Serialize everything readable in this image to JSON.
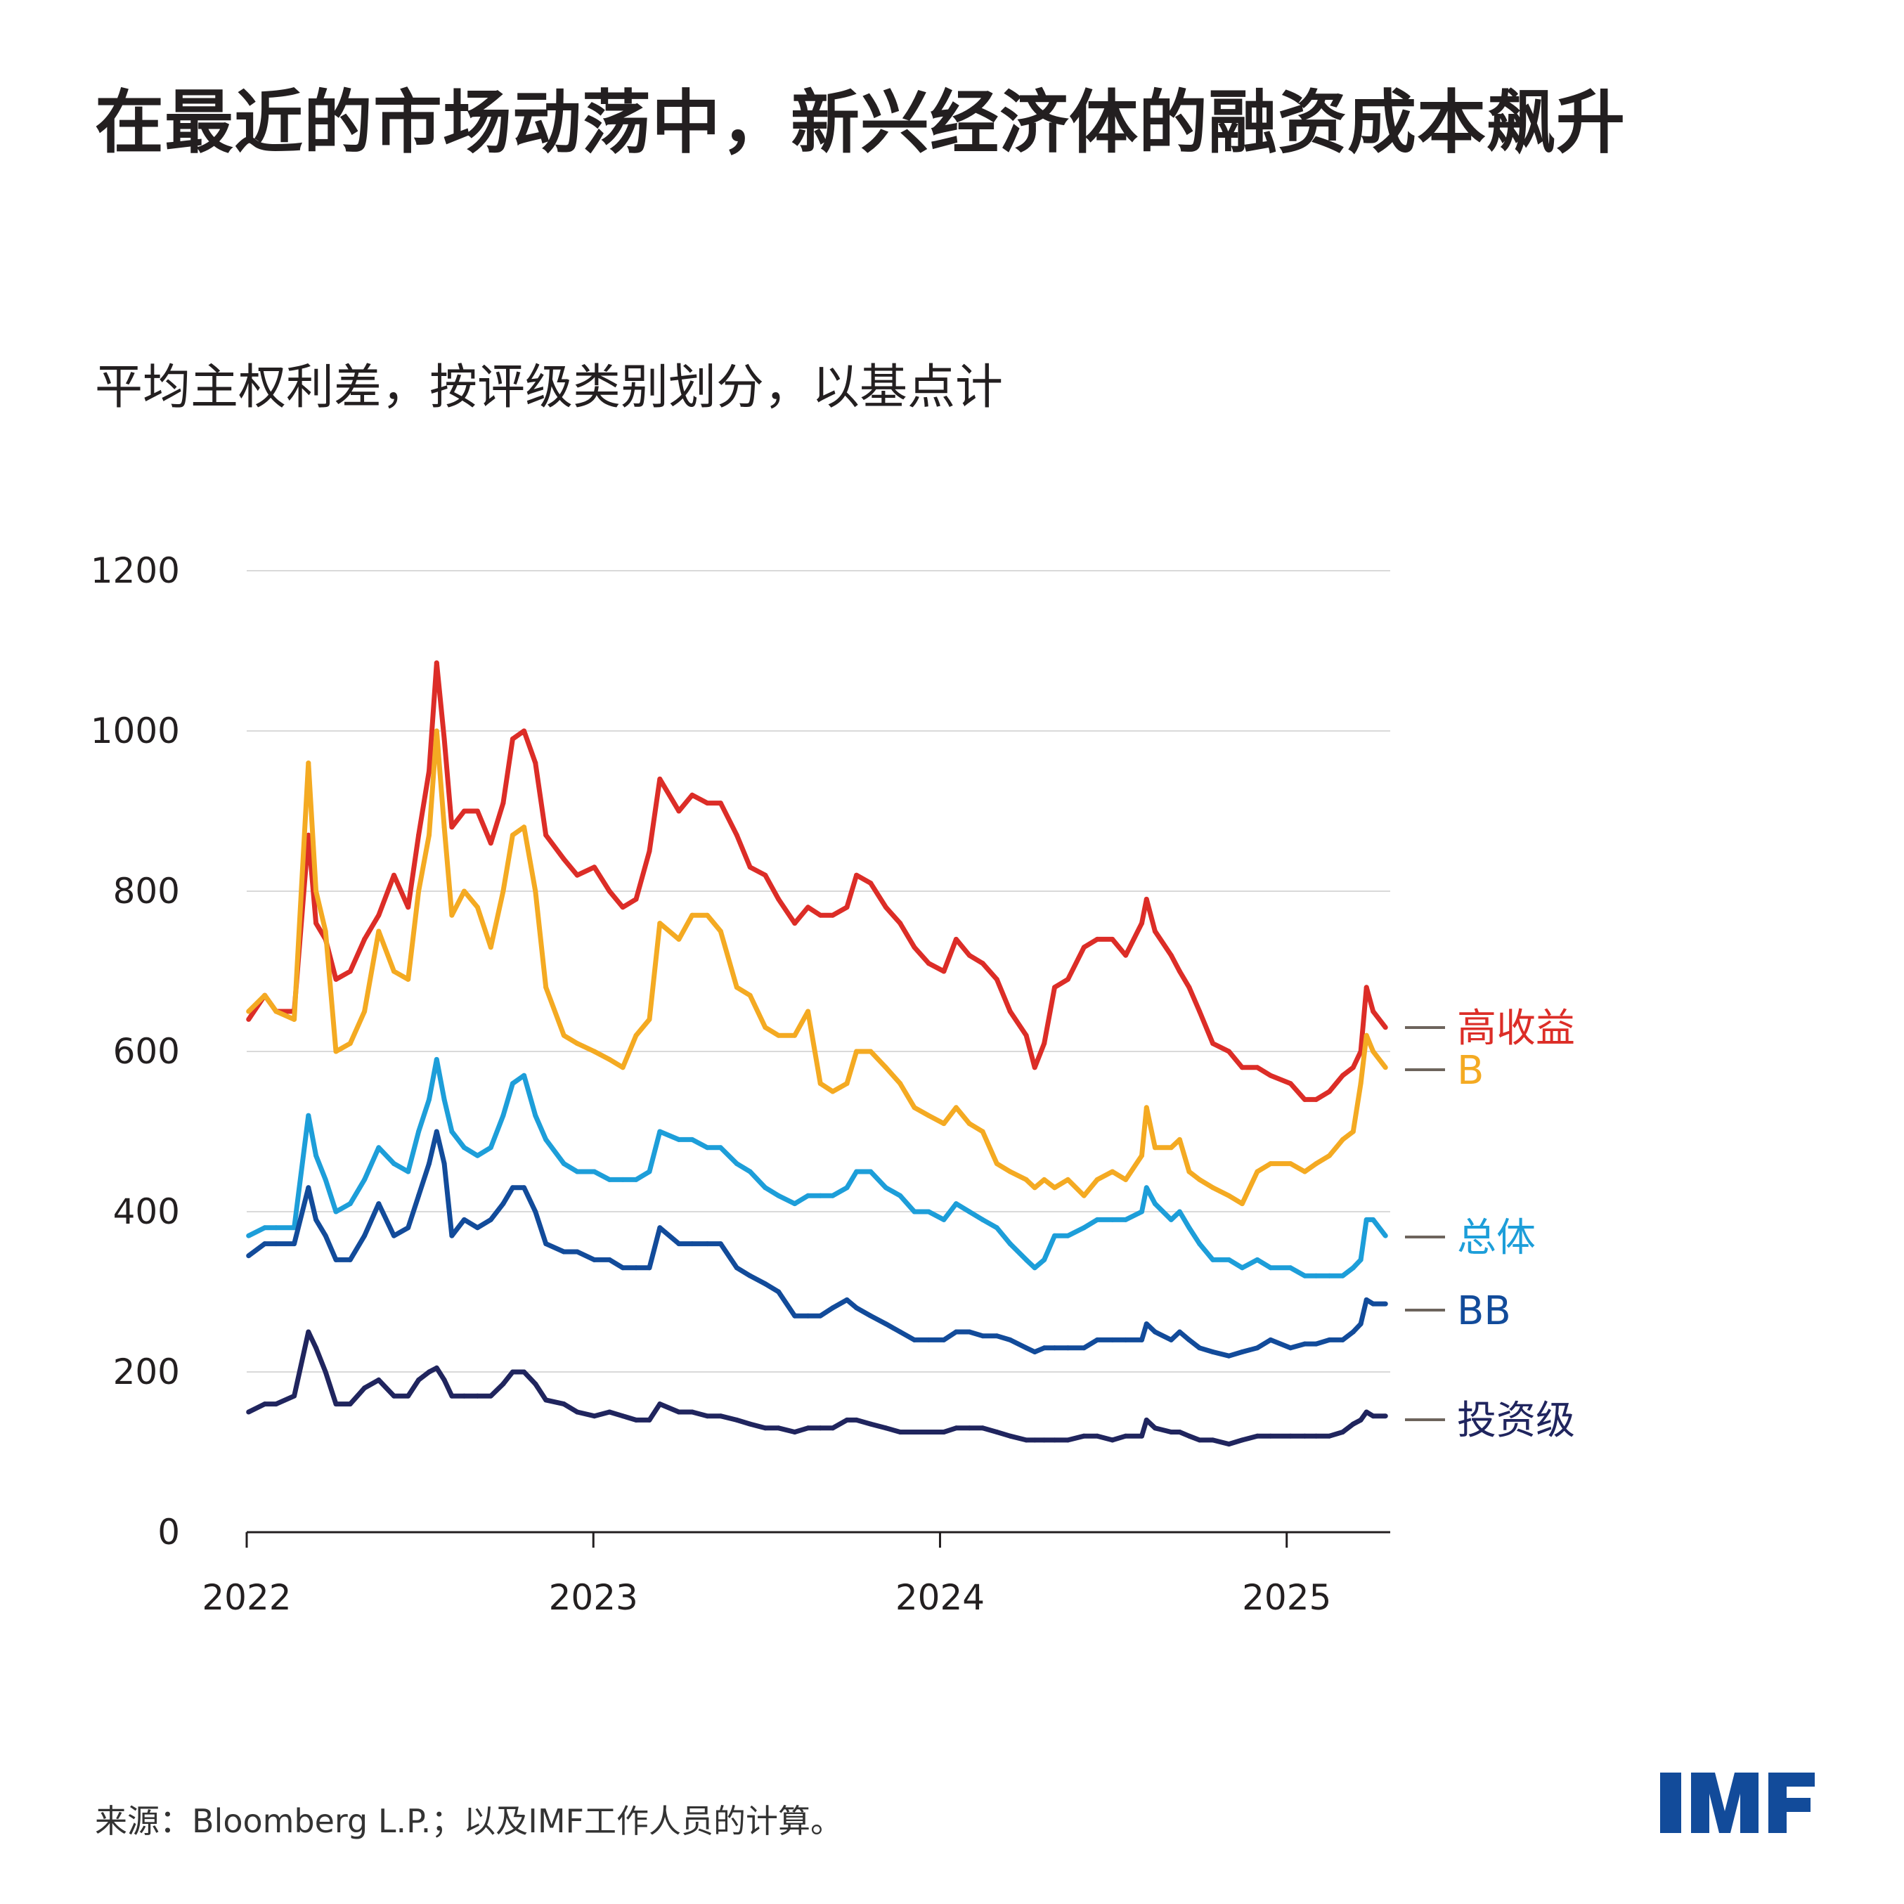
{
  "title": "在最近的市场动荡中，新兴经济体的融资成本飙升",
  "subtitle": "平均主权利差，按评级类别划分，以基点计",
  "source": "来源：Bloomberg L.P.；以及IMF工作人员的计算。",
  "logo": "IMF",
  "colors": {
    "logo": "#124b9a",
    "grid": "#d9d9d9",
    "axis": "#231f20",
    "leader": "#6d645c"
  },
  "chart_data": {
    "type": "line",
    "title": "平均主权利差，按评级类别划分，以基点计",
    "xlabel": "",
    "ylabel": "",
    "ylim": [
      0,
      1200
    ],
    "yticks": [
      0,
      200,
      400,
      600,
      800,
      1000,
      1200
    ],
    "ytick_labels": [
      "0",
      "200",
      "400",
      "600",
      "800",
      "1000",
      "1200"
    ],
    "xlim": [
      "2022-01-01",
      "2025-04-20"
    ],
    "xticks": [
      "2022-01-01",
      "2023-01-01",
      "2024-01-01",
      "2025-01-01"
    ],
    "xtick_labels": [
      "2022",
      "2023",
      "2024",
      "2025"
    ],
    "grid": "horizontal",
    "legend": "right, end-of-line labels",
    "x": [
      "2022-01-03",
      "2022-01-20",
      "2022-02-01",
      "2022-02-20",
      "2022-03-07",
      "2022-03-15",
      "2022-03-25",
      "2022-04-05",
      "2022-04-20",
      "2022-05-05",
      "2022-05-20",
      "2022-06-05",
      "2022-06-20",
      "2022-07-01",
      "2022-07-12",
      "2022-07-20",
      "2022-07-28",
      "2022-08-05",
      "2022-08-18",
      "2022-09-01",
      "2022-09-15",
      "2022-09-28",
      "2022-10-08",
      "2022-10-20",
      "2022-11-01",
      "2022-11-12",
      "2022-12-01",
      "2022-12-15",
      "2023-01-02",
      "2023-01-18",
      "2023-02-01",
      "2023-02-15",
      "2023-03-01",
      "2023-03-12",
      "2023-04-01",
      "2023-04-15",
      "2023-05-01",
      "2023-05-15",
      "2023-06-01",
      "2023-06-15",
      "2023-07-01",
      "2023-07-15",
      "2023-08-01",
      "2023-08-15",
      "2023-08-28",
      "2023-09-10",
      "2023-09-25",
      "2023-10-05",
      "2023-10-20",
      "2023-11-05",
      "2023-11-20",
      "2023-12-05",
      "2023-12-20",
      "2024-01-05",
      "2024-01-18",
      "2024-02-01",
      "2024-02-15",
      "2024-03-01",
      "2024-03-15",
      "2024-04-01",
      "2024-04-10",
      "2024-04-20",
      "2024-05-01",
      "2024-05-15",
      "2024-06-01",
      "2024-06-15",
      "2024-07-01",
      "2024-07-15",
      "2024-08-01",
      "2024-08-06",
      "2024-08-15",
      "2024-09-01",
      "2024-09-10",
      "2024-09-20",
      "2024-10-01",
      "2024-10-15",
      "2024-11-01",
      "2024-11-15",
      "2024-12-01",
      "2024-12-15",
      "2025-01-05",
      "2025-01-20",
      "2025-02-01",
      "2025-02-15",
      "2025-03-01",
      "2025-03-12",
      "2025-03-20",
      "2025-03-26",
      "2025-04-02",
      "2025-04-15"
    ],
    "series": [
      {
        "name": "高收益",
        "color": "#dc2d27",
        "values": [
          640,
          670,
          650,
          650,
          870,
          760,
          740,
          690,
          700,
          740,
          770,
          820,
          780,
          870,
          950,
          1085,
          990,
          880,
          900,
          900,
          860,
          910,
          990,
          1000,
          960,
          870,
          840,
          820,
          830,
          800,
          780,
          790,
          850,
          940,
          900,
          920,
          910,
          910,
          870,
          830,
          820,
          790,
          760,
          780,
          770,
          770,
          780,
          820,
          810,
          780,
          760,
          730,
          710,
          700,
          740,
          720,
          710,
          690,
          650,
          620,
          580,
          610,
          680,
          690,
          730,
          740,
          740,
          720,
          760,
          790,
          750,
          720,
          700,
          680,
          650,
          610,
          600,
          580,
          580,
          570,
          560,
          540,
          540,
          550,
          570,
          580,
          600,
          680,
          650,
          630
        ]
      },
      {
        "name": "B",
        "color": "#f4aa22",
        "values": [
          650,
          670,
          650,
          640,
          960,
          800,
          750,
          600,
          610,
          650,
          750,
          700,
          690,
          800,
          870,
          1000,
          880,
          770,
          800,
          780,
          730,
          800,
          870,
          880,
          800,
          680,
          620,
          610,
          600,
          590,
          580,
          620,
          640,
          760,
          740,
          770,
          770,
          750,
          680,
          670,
          630,
          620,
          620,
          650,
          560,
          550,
          560,
          600,
          600,
          580,
          560,
          530,
          520,
          510,
          530,
          510,
          500,
          460,
          450,
          440,
          430,
          440,
          430,
          440,
          420,
          440,
          450,
          440,
          470,
          530,
          480,
          480,
          490,
          450,
          440,
          430,
          420,
          410,
          450,
          460,
          460,
          450,
          460,
          470,
          490,
          500,
          560,
          620,
          600,
          580
        ]
      },
      {
        "name": "总体",
        "color": "#1d9ed9",
        "values": [
          370,
          380,
          380,
          380,
          520,
          470,
          440,
          400,
          410,
          440,
          480,
          460,
          450,
          500,
          540,
          590,
          540,
          500,
          480,
          470,
          480,
          520,
          560,
          570,
          520,
          490,
          460,
          450,
          450,
          440,
          440,
          440,
          450,
          500,
          490,
          490,
          480,
          480,
          460,
          450,
          430,
          420,
          410,
          420,
          420,
          420,
          430,
          450,
          450,
          430,
          420,
          400,
          400,
          390,
          410,
          400,
          390,
          380,
          360,
          340,
          330,
          340,
          370,
          370,
          380,
          390,
          390,
          390,
          400,
          430,
          410,
          390,
          400,
          380,
          360,
          340,
          340,
          330,
          340,
          330,
          330,
          320,
          320,
          320,
          320,
          330,
          340,
          390,
          390,
          370
        ]
      },
      {
        "name": "BB",
        "color": "#124b9a",
        "values": [
          345,
          360,
          360,
          360,
          430,
          390,
          370,
          340,
          340,
          370,
          410,
          370,
          380,
          420,
          460,
          500,
          460,
          370,
          390,
          380,
          390,
          410,
          430,
          430,
          400,
          360,
          350,
          350,
          340,
          340,
          330,
          330,
          330,
          380,
          360,
          360,
          360,
          360,
          330,
          320,
          310,
          300,
          270,
          270,
          270,
          280,
          290,
          280,
          270,
          260,
          250,
          240,
          240,
          240,
          250,
          250,
          245,
          245,
          240,
          230,
          225,
          230,
          230,
          230,
          230,
          240,
          240,
          240,
          240,
          260,
          250,
          240,
          250,
          240,
          230,
          225,
          220,
          225,
          230,
          240,
          230,
          235,
          235,
          240,
          240,
          250,
          260,
          290,
          285,
          285
        ]
      },
      {
        "name": "投资级",
        "color": "#20255e",
        "values": [
          150,
          160,
          160,
          170,
          250,
          230,
          200,
          160,
          160,
          180,
          190,
          170,
          170,
          190,
          200,
          205,
          190,
          170,
          170,
          170,
          170,
          185,
          200,
          200,
          185,
          165,
          160,
          150,
          145,
          150,
          145,
          140,
          140,
          160,
          150,
          150,
          145,
          145,
          140,
          135,
          130,
          130,
          125,
          130,
          130,
          130,
          140,
          140,
          135,
          130,
          125,
          125,
          125,
          125,
          130,
          130,
          130,
          125,
          120,
          115,
          115,
          115,
          115,
          115,
          120,
          120,
          115,
          120,
          120,
          140,
          130,
          125,
          125,
          120,
          115,
          115,
          110,
          115,
          120,
          120,
          120,
          120,
          120,
          120,
          125,
          135,
          140,
          150,
          145,
          145
        ]
      }
    ]
  }
}
